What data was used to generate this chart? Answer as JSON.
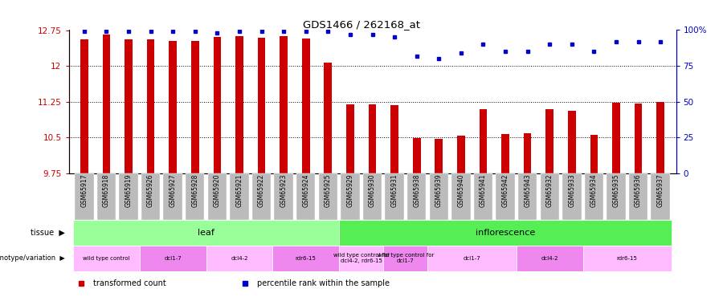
{
  "title": "GDS1466 / 262168_at",
  "samples": [
    "GSM65917",
    "GSM65918",
    "GSM65919",
    "GSM65926",
    "GSM65927",
    "GSM65928",
    "GSM65920",
    "GSM65921",
    "GSM65922",
    "GSM65923",
    "GSM65924",
    "GSM65925",
    "GSM65929",
    "GSM65930",
    "GSM65931",
    "GSM65938",
    "GSM65939",
    "GSM65940",
    "GSM65941",
    "GSM65942",
    "GSM65943",
    "GSM65932",
    "GSM65933",
    "GSM65934",
    "GSM65935",
    "GSM65936",
    "GSM65937"
  ],
  "bar_values": [
    12.55,
    12.65,
    12.55,
    12.55,
    12.52,
    12.53,
    12.61,
    12.62,
    12.59,
    12.62,
    12.58,
    12.06,
    11.19,
    11.19,
    11.18,
    10.49,
    10.47,
    10.54,
    11.09,
    10.57,
    10.58,
    11.09,
    11.05,
    10.56,
    11.23,
    11.21,
    11.24
  ],
  "percentile_values": [
    99,
    99,
    99,
    99,
    99,
    99,
    98,
    99,
    99,
    99,
    99,
    99,
    97,
    97,
    95,
    82,
    80,
    84,
    90,
    85,
    85,
    90,
    90,
    85,
    92,
    92,
    92
  ],
  "ylim_left": [
    9.75,
    12.75
  ],
  "ylim_right": [
    0,
    100
  ],
  "yticks_left": [
    9.75,
    10.5,
    11.25,
    12.0,
    12.75
  ],
  "yticks_right": [
    0,
    25,
    50,
    75,
    100
  ],
  "ytick_labels_left": [
    "9.75",
    "10.5",
    "11.25",
    "12",
    "12.75"
  ],
  "ytick_labels_right": [
    "0",
    "25",
    "50",
    "75",
    "100%"
  ],
  "bar_color": "#cc0000",
  "dot_color": "#0000cc",
  "tissue_groups": [
    {
      "label": "leaf",
      "start": 0,
      "end": 11,
      "color": "#99ff99"
    },
    {
      "label": "inflorescence",
      "start": 12,
      "end": 26,
      "color": "#55ee55"
    }
  ],
  "genotype_groups": [
    {
      "label": "wild type control",
      "start": 0,
      "end": 2,
      "color": "#ffbbff"
    },
    {
      "label": "dcl1-7",
      "start": 3,
      "end": 5,
      "color": "#ee88ee"
    },
    {
      "label": "dcl4-2",
      "start": 6,
      "end": 8,
      "color": "#ffbbff"
    },
    {
      "label": "rdr6-15",
      "start": 9,
      "end": 11,
      "color": "#ee88ee"
    },
    {
      "label": "wild type control for\ndcl4-2, rdr6-15",
      "start": 12,
      "end": 13,
      "color": "#ffbbff"
    },
    {
      "label": "wild type control for\ndcl1-7",
      "start": 14,
      "end": 15,
      "color": "#ee88ee"
    },
    {
      "label": "dcl1-7",
      "start": 16,
      "end": 19,
      "color": "#ffbbff"
    },
    {
      "label": "dcl4-2",
      "start": 20,
      "end": 22,
      "color": "#ee88ee"
    },
    {
      "label": "rdr6-15",
      "start": 23,
      "end": 26,
      "color": "#ffbbff"
    }
  ],
  "legend_items": [
    {
      "label": "transformed count",
      "color": "#cc0000"
    },
    {
      "label": "percentile rank within the sample",
      "color": "#0000cc"
    }
  ],
  "xlabel_color": "#cc0000",
  "right_axis_color": "#0000cc",
  "sample_label_bg": "#bbbbbb",
  "panel_bg": "#ffffff",
  "bar_width": 0.35
}
